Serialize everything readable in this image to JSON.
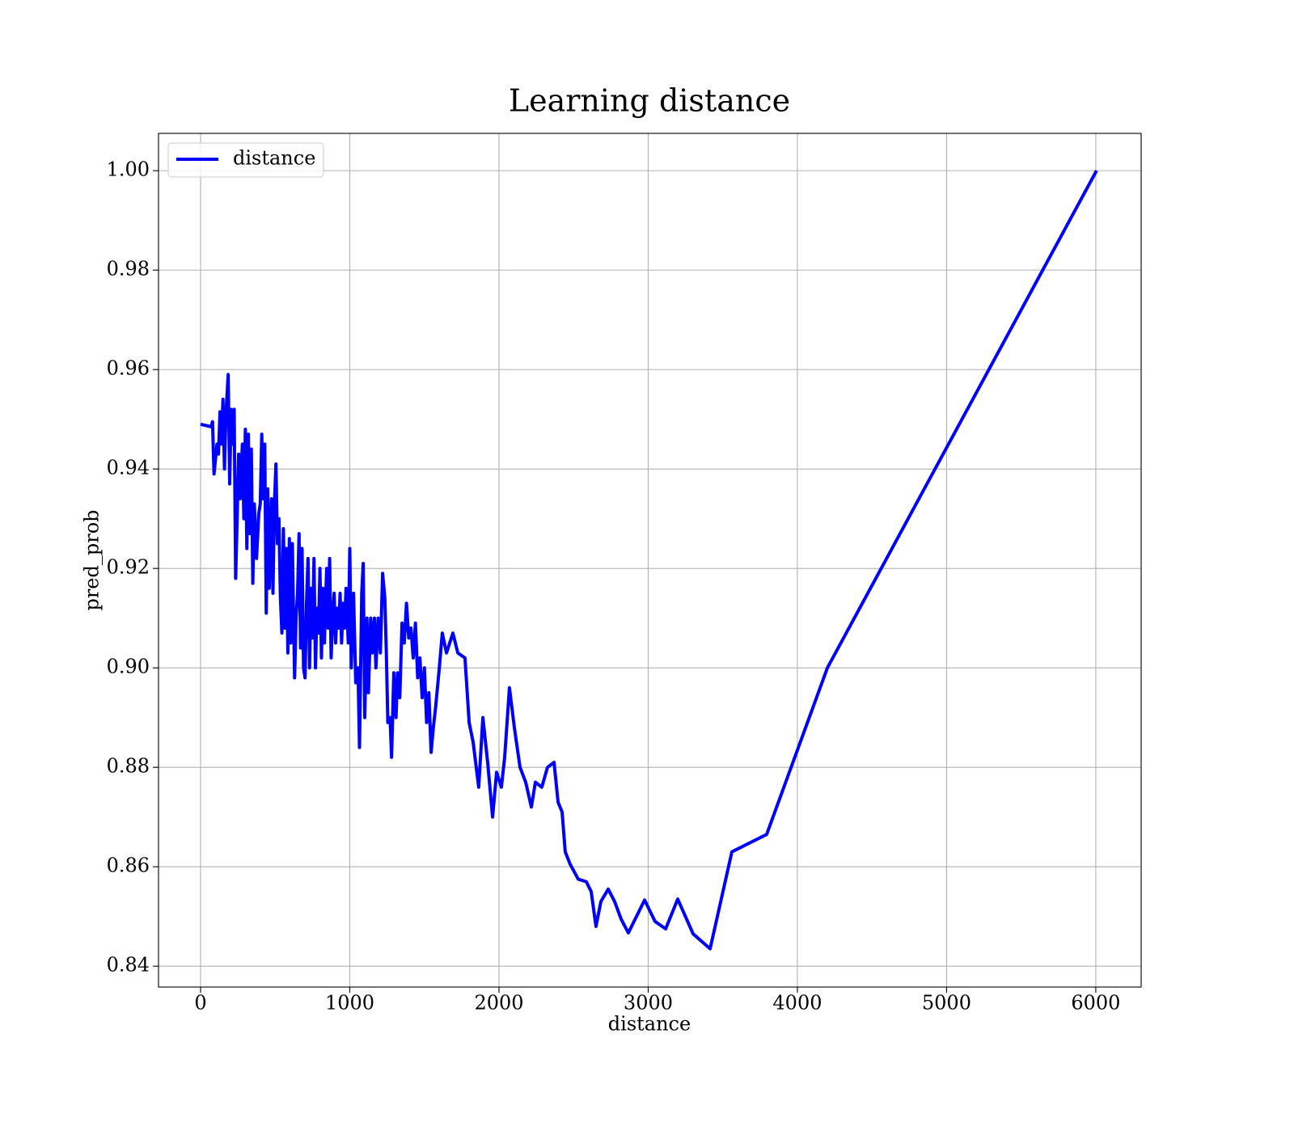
{
  "chart_data": {
    "type": "line",
    "title": "Learning distance",
    "x_label": "distance",
    "y_label": "pred_prob",
    "grid": true,
    "legend": "upper left",
    "xlim": [
      -282,
      6304
    ],
    "ylim": [
      0.8358,
      1.0075
    ],
    "xticks": [
      0,
      1000,
      2000,
      3000,
      4000,
      5000,
      6000
    ],
    "yticks": [
      0.84,
      0.86,
      0.88,
      {
        "value": 0.9,
        "label": "0.90"
      },
      0.92,
      0.94,
      0.96,
      0.98,
      {
        "value": 1,
        "label": "1.00"
      }
    ],
    "x": [
      0,
      70,
      80,
      90,
      110,
      120,
      130,
      140,
      150,
      160,
      170,
      185,
      195,
      205,
      215,
      225,
      235,
      245,
      255,
      265,
      280,
      290,
      300,
      310,
      320,
      330,
      340,
      350,
      360,
      375,
      390,
      400,
      410,
      420,
      430,
      440,
      450,
      460,
      475,
      485,
      495,
      505,
      515,
      525,
      535,
      545,
      555,
      565,
      575,
      585,
      595,
      605,
      615,
      630,
      640,
      650,
      660,
      670,
      680,
      690,
      700,
      710,
      720,
      730,
      740,
      750,
      760,
      770,
      780,
      790,
      800,
      810,
      820,
      830,
      845,
      855,
      865,
      875,
      885,
      895,
      905,
      915,
      925,
      935,
      945,
      955,
      965,
      975,
      990,
      1000,
      1010,
      1025,
      1040,
      1055,
      1065,
      1080,
      1090,
      1100,
      1115,
      1125,
      1140,
      1150,
      1165,
      1175,
      1190,
      1205,
      1220,
      1235,
      1245,
      1255,
      1270,
      1280,
      1295,
      1310,
      1320,
      1335,
      1350,
      1365,
      1380,
      1395,
      1410,
      1425,
      1440,
      1455,
      1470,
      1485,
      1500,
      1515,
      1530,
      1545,
      1560,
      1575,
      1600,
      1620,
      1648,
      1691,
      1724,
      1772,
      1800,
      1827,
      1864,
      1892,
      1924,
      1957,
      1984,
      2016,
      2038,
      2070,
      2103,
      2141,
      2179,
      2217,
      2244,
      2287,
      2325,
      2369,
      2396,
      2423,
      2444,
      2477,
      2531,
      2585,
      2618,
      2650,
      2683,
      2732,
      2775,
      2818,
      2867,
      2976,
      3046,
      3117,
      3198,
      3301,
      3415,
      3561,
      3794,
      4201,
      6005
    ],
    "series": [
      {
        "name": "distance",
        "color": "#0000ff",
        "values": [
          0.949,
          0.9485,
          0.9495,
          0.939,
          0.945,
          0.943,
          0.9515,
          0.945,
          0.954,
          0.94,
          0.951,
          0.959,
          0.937,
          0.952,
          0.945,
          0.952,
          0.918,
          0.93,
          0.943,
          0.934,
          0.945,
          0.93,
          0.948,
          0.924,
          0.947,
          0.927,
          0.944,
          0.917,
          0.933,
          0.922,
          0.931,
          0.933,
          0.947,
          0.934,
          0.945,
          0.911,
          0.936,
          0.916,
          0.934,
          0.915,
          0.933,
          0.941,
          0.925,
          0.93,
          0.914,
          0.907,
          0.928,
          0.908,
          0.924,
          0.903,
          0.926,
          0.905,
          0.925,
          0.898,
          0.91,
          0.915,
          0.927,
          0.904,
          0.924,
          0.9,
          0.898,
          0.913,
          0.922,
          0.9,
          0.916,
          0.906,
          0.922,
          0.9,
          0.912,
          0.907,
          0.92,
          0.902,
          0.916,
          0.905,
          0.92,
          0.908,
          0.922,
          0.902,
          0.91,
          0.915,
          0.905,
          0.912,
          0.908,
          0.915,
          0.905,
          0.913,
          0.908,
          0.916,
          0.905,
          0.924,
          0.9,
          0.915,
          0.897,
          0.9,
          0.884,
          0.915,
          0.921,
          0.89,
          0.91,
          0.895,
          0.91,
          0.903,
          0.91,
          0.9,
          0.91,
          0.903,
          0.919,
          0.914,
          0.903,
          0.889,
          0.89,
          0.882,
          0.899,
          0.89,
          0.899,
          0.894,
          0.909,
          0.905,
          0.913,
          0.906,
          0.908,
          0.902,
          0.909,
          0.898,
          0.902,
          0.894,
          0.9,
          0.889,
          0.895,
          0.883,
          0.888,
          0.892,
          0.9,
          0.907,
          0.903,
          0.907,
          0.903,
          0.902,
          0.889,
          0.885,
          0.876,
          0.89,
          0.881,
          0.87,
          0.879,
          0.876,
          0.882,
          0.896,
          0.888,
          0.88,
          0.877,
          0.872,
          0.877,
          0.876,
          0.88,
          0.881,
          0.873,
          0.871,
          0.863,
          0.8605,
          0.8575,
          0.857,
          0.855,
          0.848,
          0.853,
          0.8555,
          0.853,
          0.8495,
          0.8467,
          0.8533,
          0.849,
          0.8475,
          0.8535,
          0.8465,
          0.8435,
          0.863,
          0.8665,
          0.9,
          1.0
        ]
      }
    ]
  }
}
